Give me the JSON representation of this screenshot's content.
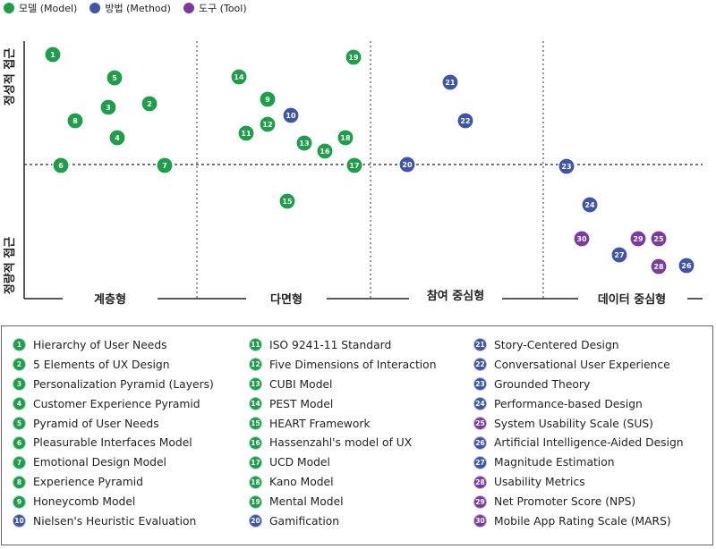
{
  "colors": {
    "model": "#1e9e4b",
    "method": "#3f55a5",
    "tool": "#7a3aa0",
    "axis": "#222222",
    "divider": "#333333"
  },
  "legend": [
    {
      "key": "model",
      "label": "모델 (Model)"
    },
    {
      "key": "method",
      "label": "방법 (Method)"
    },
    {
      "key": "tool",
      "label": "도구 (Tool)"
    }
  ],
  "axis_labels": {
    "upper": "정성적 접근",
    "lower": "정량적 접근"
  },
  "columns": [
    {
      "label": "계층형"
    },
    {
      "label": "다면형"
    },
    {
      "label": "참여 중심형"
    },
    {
      "label": "데이터 중심형"
    }
  ],
  "points": [
    {
      "n": "1",
      "cat": "model"
    },
    {
      "n": "2",
      "cat": "model"
    },
    {
      "n": "3",
      "cat": "model"
    },
    {
      "n": "4",
      "cat": "model"
    },
    {
      "n": "5",
      "cat": "model"
    },
    {
      "n": "6",
      "cat": "model"
    },
    {
      "n": "7",
      "cat": "model"
    },
    {
      "n": "8",
      "cat": "model"
    },
    {
      "n": "9",
      "cat": "model"
    },
    {
      "n": "10",
      "cat": "method"
    },
    {
      "n": "11",
      "cat": "model"
    },
    {
      "n": "12",
      "cat": "model"
    },
    {
      "n": "13",
      "cat": "model"
    },
    {
      "n": "14",
      "cat": "model"
    },
    {
      "n": "15",
      "cat": "model"
    },
    {
      "n": "16",
      "cat": "model"
    },
    {
      "n": "17",
      "cat": "model"
    },
    {
      "n": "18",
      "cat": "model"
    },
    {
      "n": "19",
      "cat": "model"
    },
    {
      "n": "20",
      "cat": "method"
    },
    {
      "n": "21",
      "cat": "method"
    },
    {
      "n": "22",
      "cat": "method"
    },
    {
      "n": "23",
      "cat": "method"
    },
    {
      "n": "24",
      "cat": "method"
    },
    {
      "n": "25",
      "cat": "tool"
    },
    {
      "n": "26",
      "cat": "method"
    },
    {
      "n": "27",
      "cat": "method"
    },
    {
      "n": "28",
      "cat": "tool"
    },
    {
      "n": "29",
      "cat": "tool"
    },
    {
      "n": "30",
      "cat": "tool"
    }
  ],
  "key_items": [
    {
      "n": "1",
      "cat": "model",
      "label": "Hierarchy of User Needs"
    },
    {
      "n": "2",
      "cat": "model",
      "label": "5 Elements of UX Design"
    },
    {
      "n": "3",
      "cat": "model",
      "label": "Personalization Pyramid (Layers)"
    },
    {
      "n": "4",
      "cat": "model",
      "label": "Customer Experience Pyramid"
    },
    {
      "n": "5",
      "cat": "model",
      "label": "Pyramid of User Needs"
    },
    {
      "n": "6",
      "cat": "model",
      "label": "Pleasurable Interfaces Model"
    },
    {
      "n": "7",
      "cat": "model",
      "label": "Emotional Design Model"
    },
    {
      "n": "8",
      "cat": "model",
      "label": "Experience Pyramid"
    },
    {
      "n": "9",
      "cat": "model",
      "label": "Honeycomb Model"
    },
    {
      "n": "10",
      "cat": "method",
      "label": "Nielsen's Heuristic Evaluation"
    },
    {
      "n": "11",
      "cat": "model",
      "label": "ISO 9241-11 Standard"
    },
    {
      "n": "12",
      "cat": "model",
      "label": "Five Dimensions of Interaction"
    },
    {
      "n": "13",
      "cat": "model",
      "label": "CUBI Model"
    },
    {
      "n": "14",
      "cat": "model",
      "label": "PEST Model"
    },
    {
      "n": "15",
      "cat": "model",
      "label": "HEART Framework"
    },
    {
      "n": "16",
      "cat": "model",
      "label": "Hassenzahl's model of UX"
    },
    {
      "n": "17",
      "cat": "model",
      "label": "UCD Model"
    },
    {
      "n": "18",
      "cat": "model",
      "label": "Kano Model"
    },
    {
      "n": "19",
      "cat": "model",
      "label": "Mental Model"
    },
    {
      "n": "20",
      "cat": "method",
      "label": "Gamification"
    },
    {
      "n": "21",
      "cat": "method",
      "label": "Story-Centered Design"
    },
    {
      "n": "22",
      "cat": "method",
      "label": "Conversational User Experience"
    },
    {
      "n": "23",
      "cat": "method",
      "label": "Grounded Theory"
    },
    {
      "n": "24",
      "cat": "method",
      "label": "Performance-based Design"
    },
    {
      "n": "25",
      "cat": "tool",
      "label": "System Usability Scale (SUS)"
    },
    {
      "n": "26",
      "cat": "method",
      "label": "Artificial Intelligence-Aided Design"
    },
    {
      "n": "27",
      "cat": "method",
      "label": "Magnitude Estimation"
    },
    {
      "n": "28",
      "cat": "tool",
      "label": "Usability Metrics"
    },
    {
      "n": "29",
      "cat": "tool",
      "label": "Net Promoter Score (NPS)"
    },
    {
      "n": "30",
      "cat": "tool",
      "label": "Mobile App Rating Scale (MARS)"
    }
  ]
}
